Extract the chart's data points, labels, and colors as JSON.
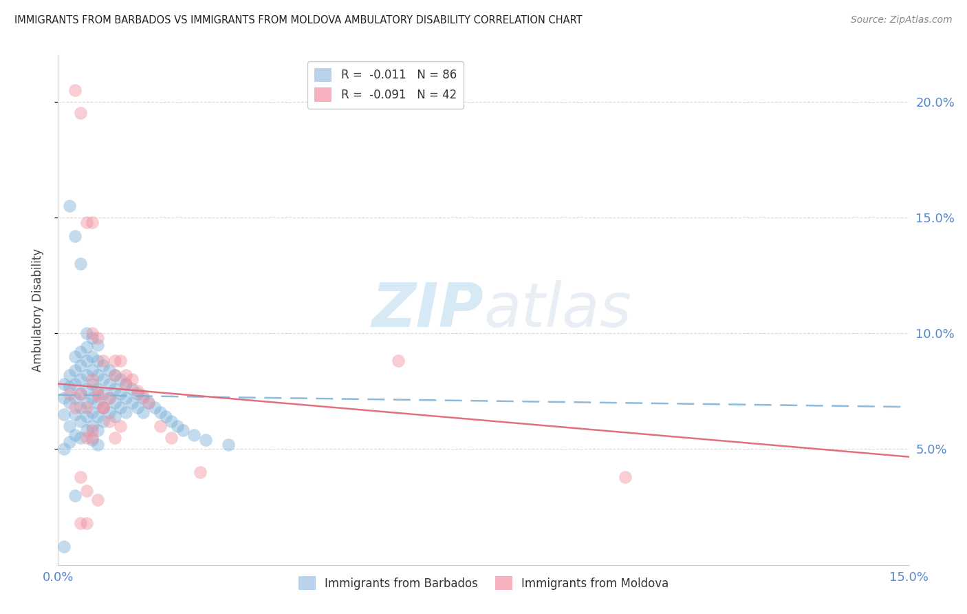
{
  "title": "IMMIGRANTS FROM BARBADOS VS IMMIGRANTS FROM MOLDOVA AMBULATORY DISABILITY CORRELATION CHART",
  "source": "Source: ZipAtlas.com",
  "ylabel": "Ambulatory Disability",
  "xlim": [
    0.0,
    0.15
  ],
  "ylim": [
    0.0,
    0.22
  ],
  "yticks": [
    0.05,
    0.1,
    0.15,
    0.2
  ],
  "ytick_labels": [
    "5.0%",
    "10.0%",
    "15.0%",
    "20.0%"
  ],
  "legend_top": [
    {
      "label": "R =  -0.011   N = 86",
      "color": "#a8c8e8"
    },
    {
      "label": "R =  -0.091   N = 42",
      "color": "#f4a0b0"
    }
  ],
  "legend_bottom": [
    {
      "label": "Immigrants from Barbados",
      "color": "#a8c8e8"
    },
    {
      "label": "Immigrants from Moldova",
      "color": "#f4a0b0"
    }
  ],
  "barbados_color": "#7ab0d8",
  "moldova_color": "#f090a0",
  "barbados_trend_color": "#7ab0d8",
  "moldova_trend_color": "#e06878",
  "watermark": "ZIPatlas",
  "background_color": "#ffffff",
  "grid_color": "#d0d0d0",
  "tick_color": "#5588cc",
  "barbados_x": [
    0.001,
    0.001,
    0.001,
    0.002,
    0.002,
    0.002,
    0.002,
    0.003,
    0.003,
    0.003,
    0.003,
    0.003,
    0.004,
    0.004,
    0.004,
    0.004,
    0.004,
    0.004,
    0.005,
    0.005,
    0.005,
    0.005,
    0.005,
    0.005,
    0.005,
    0.006,
    0.006,
    0.006,
    0.006,
    0.006,
    0.006,
    0.006,
    0.007,
    0.007,
    0.007,
    0.007,
    0.007,
    0.007,
    0.007,
    0.008,
    0.008,
    0.008,
    0.008,
    0.008,
    0.009,
    0.009,
    0.009,
    0.009,
    0.01,
    0.01,
    0.01,
    0.01,
    0.011,
    0.011,
    0.011,
    0.012,
    0.012,
    0.012,
    0.013,
    0.013,
    0.014,
    0.014,
    0.015,
    0.015,
    0.016,
    0.017,
    0.018,
    0.019,
    0.02,
    0.021,
    0.022,
    0.024,
    0.026,
    0.03,
    0.002,
    0.003,
    0.004,
    0.005,
    0.006,
    0.007,
    0.001,
    0.002,
    0.003,
    0.001,
    0.003,
    0.004
  ],
  "barbados_y": [
    0.078,
    0.072,
    0.065,
    0.082,
    0.077,
    0.07,
    0.06,
    0.09,
    0.084,
    0.078,
    0.072,
    0.065,
    0.092,
    0.086,
    0.08,
    0.074,
    0.068,
    0.062,
    0.094,
    0.088,
    0.082,
    0.076,
    0.07,
    0.064,
    0.058,
    0.09,
    0.084,
    0.078,
    0.072,
    0.066,
    0.06,
    0.054,
    0.088,
    0.082,
    0.076,
    0.07,
    0.064,
    0.058,
    0.052,
    0.086,
    0.08,
    0.074,
    0.068,
    0.062,
    0.084,
    0.078,
    0.072,
    0.066,
    0.082,
    0.076,
    0.07,
    0.064,
    0.08,
    0.074,
    0.068,
    0.078,
    0.072,
    0.066,
    0.076,
    0.07,
    0.074,
    0.068,
    0.072,
    0.066,
    0.07,
    0.068,
    0.066,
    0.064,
    0.062,
    0.06,
    0.058,
    0.056,
    0.054,
    0.052,
    0.155,
    0.142,
    0.13,
    0.1,
    0.098,
    0.095,
    0.05,
    0.053,
    0.056,
    0.008,
    0.03,
    0.055
  ],
  "moldova_x": [
    0.003,
    0.004,
    0.005,
    0.006,
    0.006,
    0.007,
    0.007,
    0.008,
    0.008,
    0.009,
    0.01,
    0.01,
    0.011,
    0.012,
    0.012,
    0.013,
    0.014,
    0.015,
    0.016,
    0.018,
    0.02,
    0.025,
    0.002,
    0.003,
    0.004,
    0.005,
    0.006,
    0.007,
    0.008,
    0.009,
    0.01,
    0.011,
    0.004,
    0.005,
    0.006,
    0.007,
    0.06,
    0.1,
    0.005,
    0.006,
    0.004,
    0.005
  ],
  "moldova_y": [
    0.205,
    0.195,
    0.148,
    0.148,
    0.1,
    0.098,
    0.073,
    0.088,
    0.068,
    0.072,
    0.088,
    0.082,
    0.088,
    0.082,
    0.078,
    0.08,
    0.075,
    0.073,
    0.07,
    0.06,
    0.055,
    0.04,
    0.074,
    0.068,
    0.074,
    0.068,
    0.08,
    0.074,
    0.068,
    0.062,
    0.055,
    0.06,
    0.038,
    0.032,
    0.055,
    0.028,
    0.088,
    0.038,
    0.055,
    0.058,
    0.018,
    0.018
  ]
}
